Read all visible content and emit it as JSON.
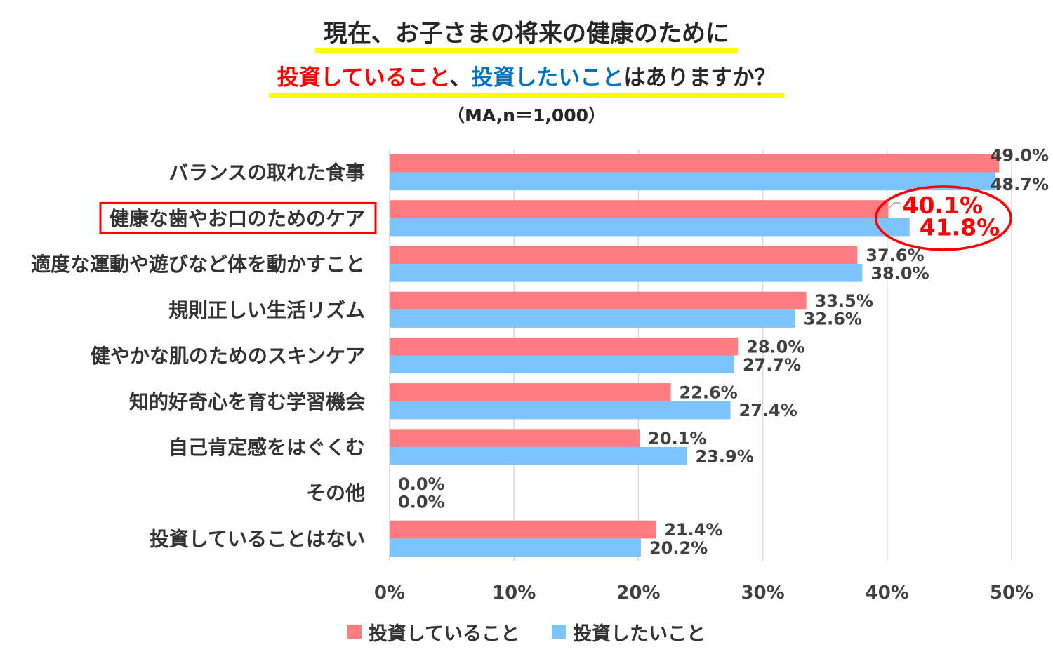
{
  "chart_data": {
    "type": "bar",
    "orientation": "horizontal",
    "title": {
      "line1": "現在、お子さまの将来の健康のために",
      "line2": [
        {
          "text": "投資していること",
          "color": "#FF0000"
        },
        {
          "text": "、",
          "color": "#262626"
        },
        {
          "text": "投資したいこと",
          "color": "#0070C0"
        },
        {
          "text": "はありますか？",
          "color": "#262626"
        }
      ],
      "underline_color": "#FFFF00"
    },
    "subtitle": "（MA,n＝1,000）",
    "categories": [
      "バランスの取れた食事",
      "健康な歯やお口のためのケア",
      "適度な運動や遊びなど体を動かすこと",
      "規則正しい生活リズム",
      "健やかな肌のためのスキンケア",
      "知的好奇心を育む学習機会",
      "自己肯定感をはぐくむ",
      "その他",
      "投資していることはない"
    ],
    "series": [
      {
        "name": "投資していること",
        "color": "#FF7C80",
        "values": [
          49.0,
          40.1,
          37.6,
          33.5,
          28.0,
          22.6,
          20.1,
          0.0,
          21.4
        ],
        "labels": [
          "49.0%",
          "40.1%",
          "37.6%",
          "33.5%",
          "28.0%",
          "22.6%",
          "20.1%",
          "0.0%",
          "21.4%"
        ]
      },
      {
        "name": "投資したいこと",
        "color": "#7DC3FE",
        "values": [
          48.7,
          41.8,
          38.0,
          32.6,
          27.7,
          27.4,
          23.9,
          0.0,
          20.2
        ],
        "labels": [
          "48.7%",
          "41.8%",
          "38.0%",
          "32.6%",
          "27.7%",
          "27.4%",
          "23.9%",
          "0.0%",
          "20.2%"
        ]
      }
    ],
    "xlim": [
      0,
      50
    ],
    "xticks": [
      0,
      10,
      20,
      30,
      40,
      50
    ],
    "xtick_labels": [
      "0%",
      "10%",
      "20%",
      "30%",
      "40%",
      "50%"
    ],
    "grid": true,
    "legend": "bottom-center",
    "highlight": {
      "category_index": 1,
      "color": "#FF0000"
    }
  }
}
